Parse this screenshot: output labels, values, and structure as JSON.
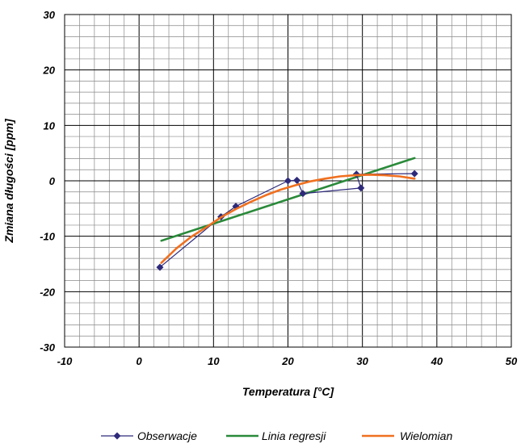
{
  "chart_data": {
    "type": "line",
    "title": "",
    "xlabel": "Temperatura [°C]",
    "ylabel": "Zmiana długości [ppm]",
    "xlim": [
      -10,
      50
    ],
    "ylim": [
      -30,
      30
    ],
    "x_ticks": [
      -10,
      0,
      10,
      20,
      30,
      40,
      50
    ],
    "y_ticks": [
      -30,
      -20,
      -10,
      0,
      10,
      20,
      30
    ],
    "x_tick_labels": [
      "-10",
      "0",
      "10",
      "20",
      "30",
      "40",
      "50"
    ],
    "y_tick_labels": [
      "-30",
      "-20",
      "-10",
      "0",
      "10",
      "20",
      "30"
    ],
    "grid": true,
    "legend_position": "bottom",
    "series": [
      {
        "name": "Obserwacje",
        "style": "line-markers",
        "color": "#2e2a7a",
        "points": [
          [
            2.8,
            -15.6
          ],
          [
            11,
            -6.5
          ],
          [
            13,
            -4.6
          ],
          [
            20,
            0
          ],
          [
            21.2,
            0.1
          ],
          [
            22,
            -2.3
          ],
          [
            29.8,
            -1.3
          ],
          [
            29.2,
            1.2
          ],
          [
            37,
            1.3
          ]
        ]
      },
      {
        "name": "Linia regresji",
        "style": "line",
        "color": "#2a8a3a",
        "points": [
          [
            3,
            -10.8
          ],
          [
            37,
            4.1
          ]
        ]
      },
      {
        "name": "Wielomian",
        "style": "line",
        "color": "#f07020",
        "points": [
          [
            3,
            -14.8
          ],
          [
            5,
            -12.2
          ],
          [
            7,
            -10.1
          ],
          [
            9,
            -8.4
          ],
          [
            11,
            -6.6
          ],
          [
            13,
            -5.1
          ],
          [
            15,
            -3.8
          ],
          [
            17,
            -2.6
          ],
          [
            19,
            -1.6
          ],
          [
            21,
            -0.8
          ],
          [
            23,
            -0.1
          ],
          [
            25,
            0.4
          ],
          [
            27,
            0.8
          ],
          [
            29,
            1.0
          ],
          [
            31,
            1.1
          ],
          [
            33,
            1.0
          ],
          [
            35,
            0.8
          ],
          [
            37,
            0.4
          ]
        ]
      }
    ]
  }
}
